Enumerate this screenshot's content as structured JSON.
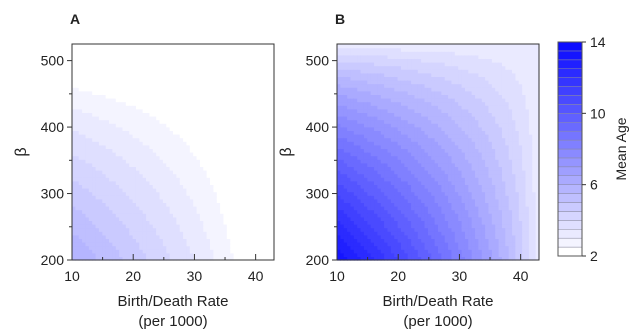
{
  "chart_data": [
    {
      "type": "heatmap",
      "panel_label": "A",
      "xlabel_line1": "Birth/Death Rate",
      "xlabel_line2": "(per 1000)",
      "ylabel": "β",
      "xlim": [
        10,
        43
      ],
      "ylim": [
        200,
        525
      ],
      "xticks": [
        10,
        20,
        30,
        40
      ],
      "yticks": [
        200,
        300,
        400,
        500
      ],
      "z_model": {
        "base": 1.0,
        "amp": 5.0,
        "gamma": 0.75,
        "note_range": [
          2.2,
          6.0
        ]
      }
    },
    {
      "type": "heatmap",
      "panel_label": "B",
      "xlabel_line1": "Birth/Death Rate",
      "xlabel_line2": "(per 1000)",
      "ylabel": "β",
      "xlim": [
        10,
        43
      ],
      "ylim": [
        200,
        525
      ],
      "xticks": [
        10,
        20,
        30,
        40
      ],
      "yticks": [
        200,
        300,
        400,
        500
      ],
      "z_model": {
        "base": 3.0,
        "amp": 10.5,
        "gamma": 0.75,
        "note_range": [
          3.5,
          13.5
        ]
      }
    }
  ],
  "colorbar": {
    "label": "Mean Age",
    "min": 2,
    "max": 14,
    "ticks": [
      2,
      6,
      10,
      14
    ],
    "levels": 24,
    "color_low": "#ffffff",
    "color_high": "#0000ff"
  }
}
